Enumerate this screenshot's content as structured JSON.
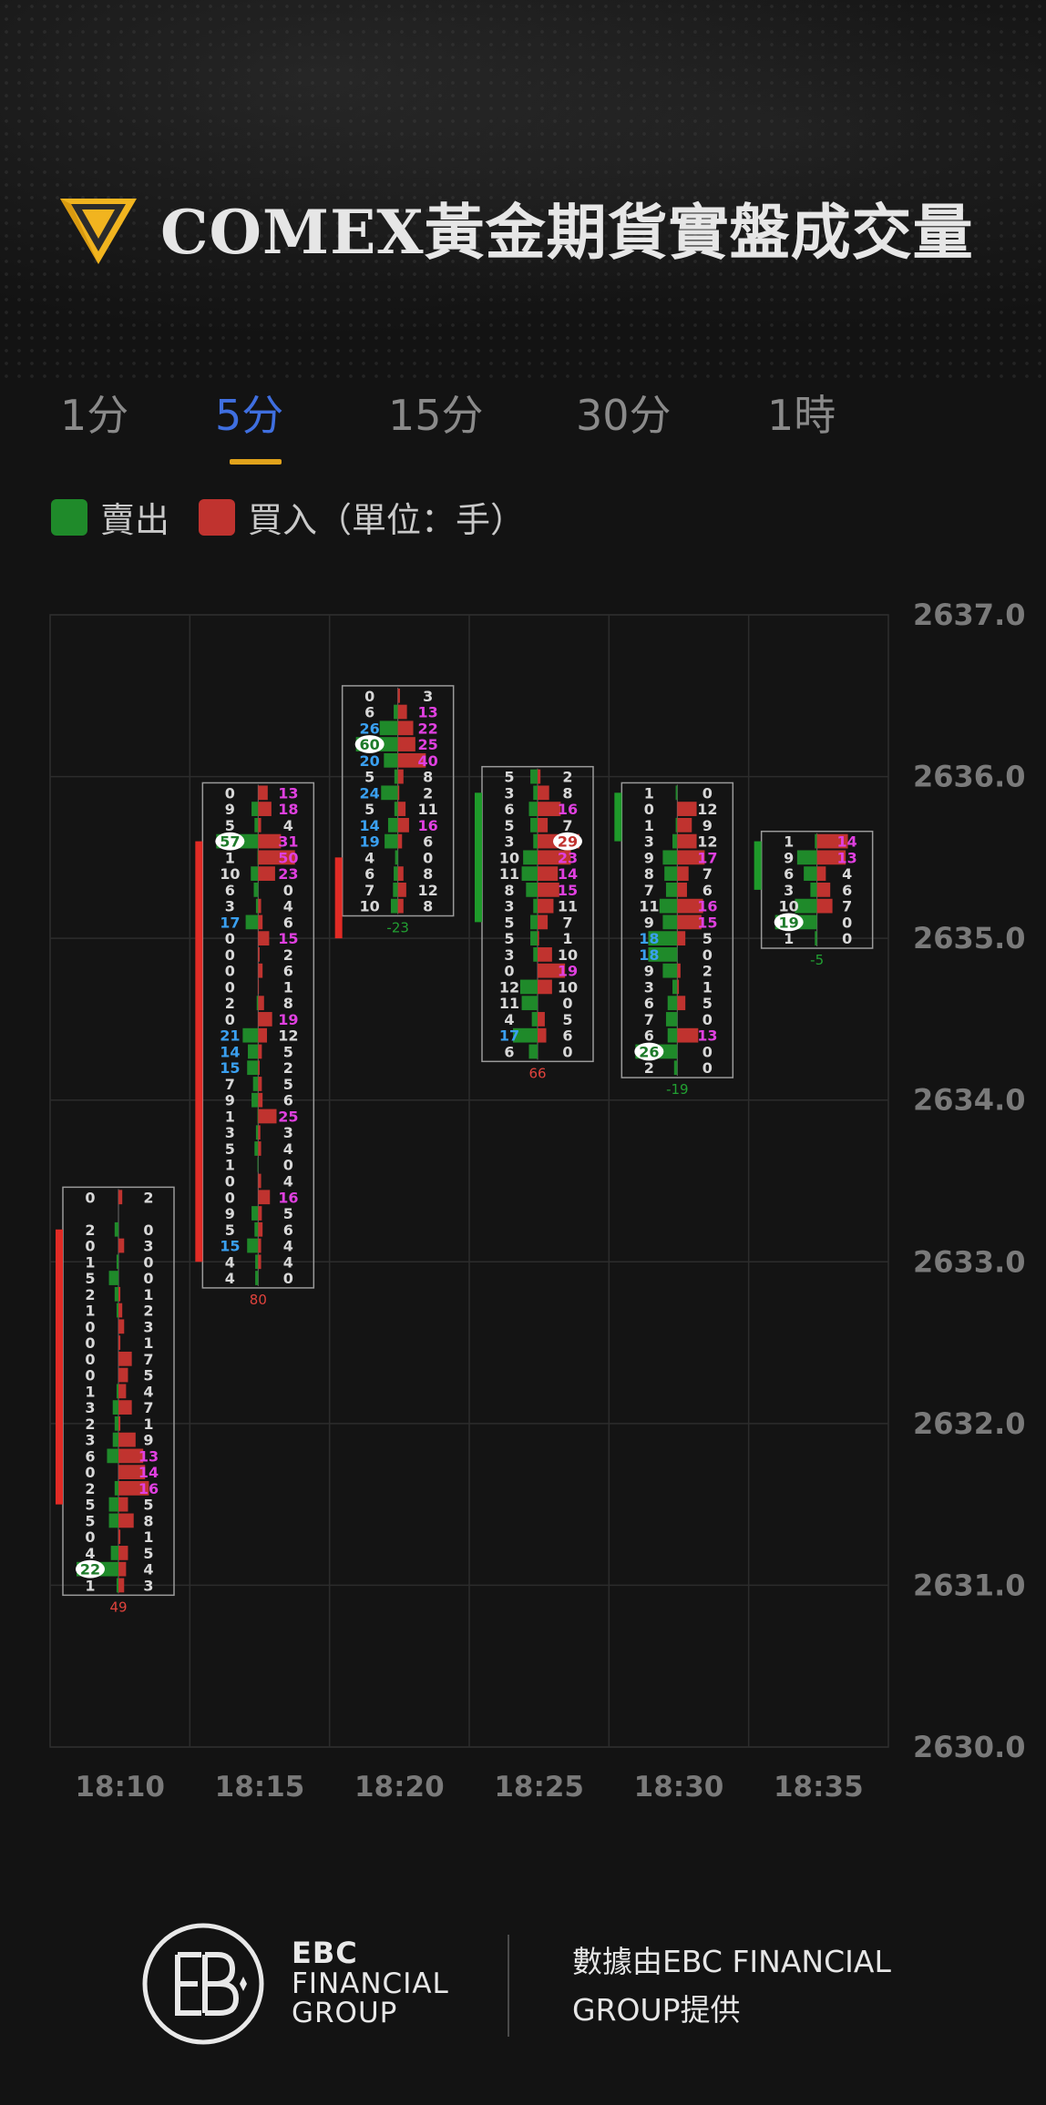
{
  "header": {
    "title": "COMEX黃金期貨實盤成交量",
    "logo_icon": "gold-diamond-icon"
  },
  "tabs": [
    {
      "label": "1分",
      "active": false
    },
    {
      "label": "5分",
      "active": true
    },
    {
      "label": "15分",
      "active": false
    },
    {
      "label": "30分",
      "active": false
    },
    {
      "label": "1時",
      "active": false
    }
  ],
  "legend": {
    "sell": "賣出",
    "buy": "買入（單位：手）"
  },
  "colors": {
    "sell": "#1f8a2a",
    "buy": "#c0332f",
    "accent": "#3f6fe0",
    "underline": "#e0a21b"
  },
  "chart_data": {
    "type": "footprint",
    "price_step": 0.1,
    "y_ticks": [
      "2637.0",
      "2636.0",
      "2635.0",
      "2634.0",
      "2633.0",
      "2632.0",
      "2631.0",
      "2630.0"
    ],
    "ylim": [
      2630.0,
      2637.0
    ],
    "x_labels": [
      "18:10",
      "18:15",
      "18:20",
      "18:25",
      "18:30",
      "18:35"
    ],
    "candles": [
      {
        "time": "18:10",
        "top": 2633.4,
        "delta": "49",
        "delta_positive": true,
        "open": 2631.5,
        "close": 2633.2,
        "rows": [
          [
            0,
            2
          ],
          [
            null,
            null
          ],
          [
            2,
            0
          ],
          [
            0,
            3
          ],
          [
            1,
            0
          ],
          [
            5,
            0
          ],
          [
            2,
            1
          ],
          [
            1,
            2
          ],
          [
            0,
            3
          ],
          [
            0,
            1
          ],
          [
            0,
            7
          ],
          [
            0,
            5
          ],
          [
            1,
            4
          ],
          [
            3,
            7
          ],
          [
            2,
            1
          ],
          [
            3,
            9
          ],
          [
            6,
            13
          ],
          [
            0,
            14
          ],
          [
            2,
            16
          ],
          [
            5,
            5
          ],
          [
            5,
            8
          ],
          [
            0,
            1
          ],
          [
            4,
            5
          ],
          [
            22,
            4
          ],
          [
            1,
            3
          ]
        ]
      },
      {
        "time": "18:15",
        "top": 2635.9,
        "delta": "80",
        "delta_positive": true,
        "open": 2633.0,
        "close": 2635.6,
        "rows": [
          [
            0,
            13
          ],
          [
            9,
            18
          ],
          [
            5,
            4
          ],
          [
            57,
            31
          ],
          [
            1,
            50
          ],
          [
            10,
            23
          ],
          [
            6,
            0
          ],
          [
            3,
            4
          ],
          [
            17,
            6
          ],
          [
            0,
            15
          ],
          [
            0,
            2
          ],
          [
            0,
            6
          ],
          [
            0,
            1
          ],
          [
            2,
            8
          ],
          [
            0,
            19
          ],
          [
            21,
            12
          ],
          [
            14,
            5
          ],
          [
            15,
            2
          ],
          [
            7,
            5
          ],
          [
            9,
            6
          ],
          [
            1,
            25
          ],
          [
            3,
            3
          ],
          [
            5,
            4
          ],
          [
            1,
            0
          ],
          [
            0,
            4
          ],
          [
            0,
            16
          ],
          [
            9,
            5
          ],
          [
            5,
            6
          ],
          [
            15,
            4
          ],
          [
            4,
            4
          ],
          [
            4,
            0
          ]
        ]
      },
      {
        "time": "18:20",
        "top": 2636.5,
        "delta": "-23",
        "delta_positive": false,
        "open": 2635.0,
        "close": 2635.5,
        "rows": [
          [
            0,
            3
          ],
          [
            6,
            13
          ],
          [
            26,
            22
          ],
          [
            60,
            25
          ],
          [
            20,
            40
          ],
          [
            5,
            8
          ],
          [
            24,
            2
          ],
          [
            5,
            11
          ],
          [
            14,
            16
          ],
          [
            19,
            6
          ],
          [
            4,
            0
          ],
          [
            6,
            8
          ],
          [
            7,
            12
          ],
          [
            10,
            8
          ]
        ]
      },
      {
        "time": "18:25",
        "top": 2636.0,
        "delta": "66",
        "delta_positive": true,
        "open": 2635.9,
        "close": 2635.1,
        "rows": [
          [
            5,
            2
          ],
          [
            3,
            8
          ],
          [
            6,
            16
          ],
          [
            5,
            7
          ],
          [
            3,
            29
          ],
          [
            10,
            23
          ],
          [
            11,
            14
          ],
          [
            8,
            15
          ],
          [
            3,
            11
          ],
          [
            5,
            7
          ],
          [
            5,
            1
          ],
          [
            3,
            10
          ],
          [
            0,
            19
          ],
          [
            12,
            10
          ],
          [
            11,
            0
          ],
          [
            4,
            5
          ],
          [
            17,
            6
          ],
          [
            6,
            0
          ]
        ]
      },
      {
        "time": "18:30",
        "top": 2635.9,
        "delta": "-19",
        "delta_positive": false,
        "open": 2635.9,
        "close": 2635.6,
        "rows": [
          [
            1,
            0
          ],
          [
            0,
            12
          ],
          [
            1,
            9
          ],
          [
            3,
            12
          ],
          [
            9,
            17
          ],
          [
            8,
            7
          ],
          [
            7,
            6
          ],
          [
            11,
            16
          ],
          [
            9,
            15
          ],
          [
            18,
            5
          ],
          [
            18,
            0
          ],
          [
            9,
            2
          ],
          [
            3,
            1
          ],
          [
            6,
            5
          ],
          [
            7,
            0
          ],
          [
            6,
            13
          ],
          [
            26,
            0
          ],
          [
            2,
            0
          ]
        ]
      },
      {
        "time": "18:35",
        "top": 2635.6,
        "delta": "-5",
        "delta_positive": false,
        "open": 2635.6,
        "close": 2635.3,
        "rows": [
          [
            1,
            14
          ],
          [
            9,
            13
          ],
          [
            6,
            4
          ],
          [
            3,
            6
          ],
          [
            10,
            7
          ],
          [
            19,
            0
          ],
          [
            1,
            0
          ]
        ]
      }
    ]
  },
  "footer": {
    "brand_line1": "EBC",
    "brand_line2": "FINANCIAL",
    "brand_line3": "GROUP",
    "provider": "數據由EBC FINANCIAL GROUP提供",
    "logo_icon": "ebc-logo-icon"
  }
}
